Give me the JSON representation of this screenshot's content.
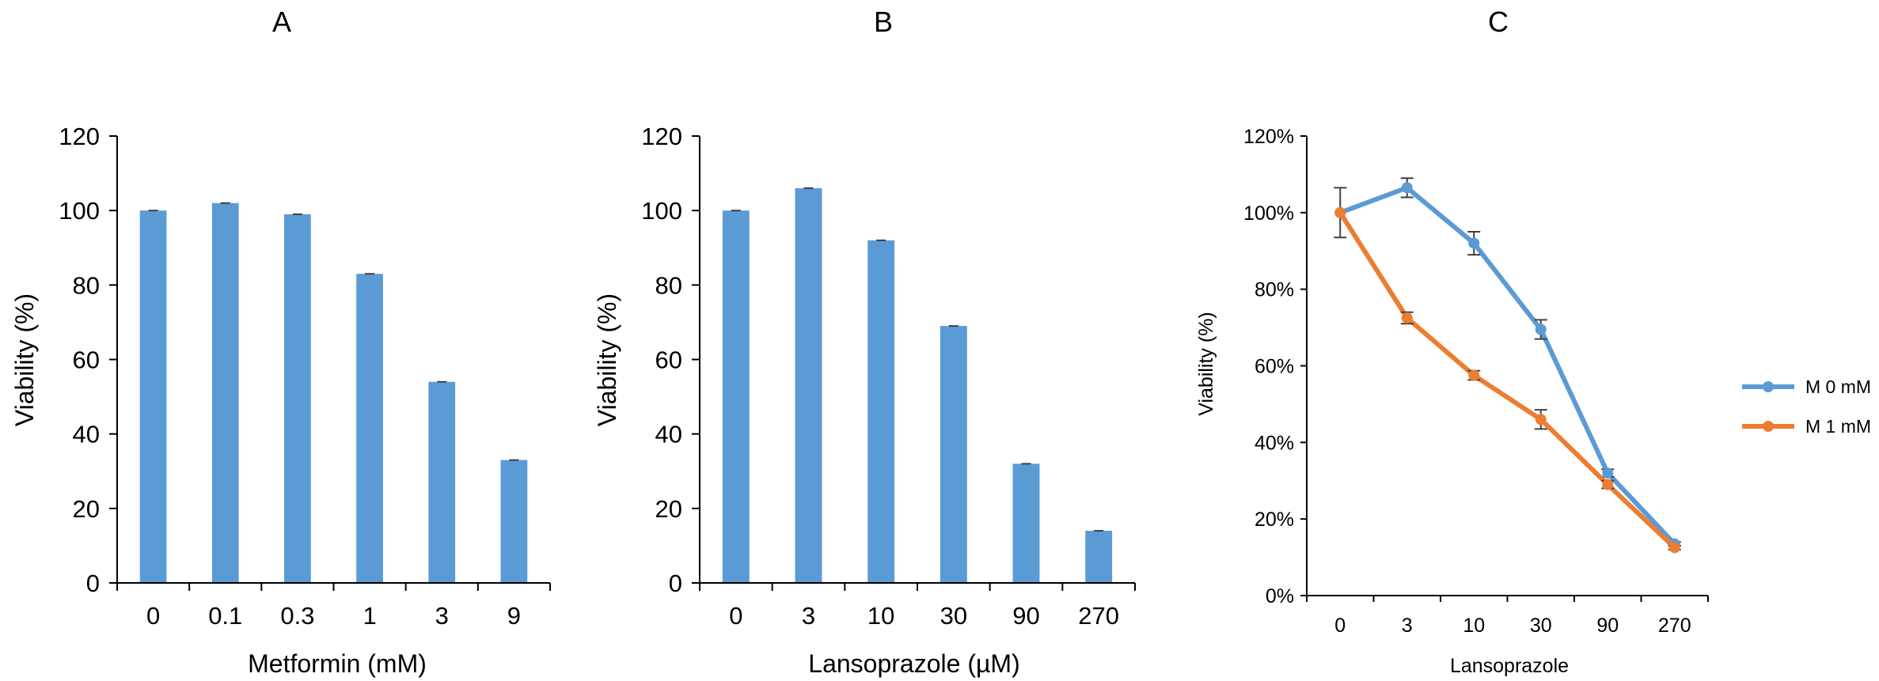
{
  "colors": {
    "bar": "#5b9bd5",
    "series_blue": "#5b9bd5",
    "series_orange": "#ed7d31",
    "axis": "#000000",
    "errorbar": "#404040"
  },
  "chart_data": [
    {
      "panel_label": "A",
      "type": "bar",
      "categories": [
        "0",
        "0.1",
        "0.3",
        "1",
        "3",
        "9"
      ],
      "values": [
        100,
        102,
        99,
        83,
        54,
        33
      ],
      "xlabel": "Metformin (mM)",
      "ylabel": "Viability (%)",
      "ylim": [
        0,
        120
      ],
      "yticks": [
        "0",
        "20",
        "40",
        "60",
        "80",
        "100",
        "120"
      ],
      "grid": false
    },
    {
      "panel_label": "B",
      "type": "bar",
      "categories": [
        "0",
        "3",
        "10",
        "30",
        "90",
        "270"
      ],
      "values": [
        100,
        106,
        92,
        69,
        32,
        14
      ],
      "xlabel": "Lansoprazole (µM)",
      "ylabel": "Viability (%)",
      "ylim": [
        0,
        120
      ],
      "yticks": [
        "0",
        "20",
        "40",
        "60",
        "80",
        "100",
        "120"
      ],
      "grid": false
    },
    {
      "panel_label": "C",
      "type": "line",
      "categories": [
        "0",
        "3",
        "10",
        "30",
        "90",
        "270"
      ],
      "xlabel": "Lansoprazole",
      "ylabel": "Viability (%)",
      "ylim": [
        0,
        1.2
      ],
      "yticks": [
        "0%",
        "20%",
        "40%",
        "60%",
        "80%",
        "100%",
        "120%"
      ],
      "grid": false,
      "legend_position": "right",
      "series": [
        {
          "name": "M 0 mM",
          "color": "#5b9bd5",
          "values": [
            1.0,
            1.065,
            0.92,
            0.695,
            0.32,
            0.135
          ],
          "errors": [
            0.065,
            0.025,
            0.03,
            0.025,
            0.01,
            0.005
          ]
        },
        {
          "name": "M 1 mM",
          "color": "#ed7d31",
          "values": [
            1.0,
            0.725,
            0.575,
            0.46,
            0.29,
            0.125
          ],
          "errors": [
            0.0,
            0.015,
            0.012,
            0.025,
            0.01,
            0.005
          ]
        }
      ]
    }
  ]
}
